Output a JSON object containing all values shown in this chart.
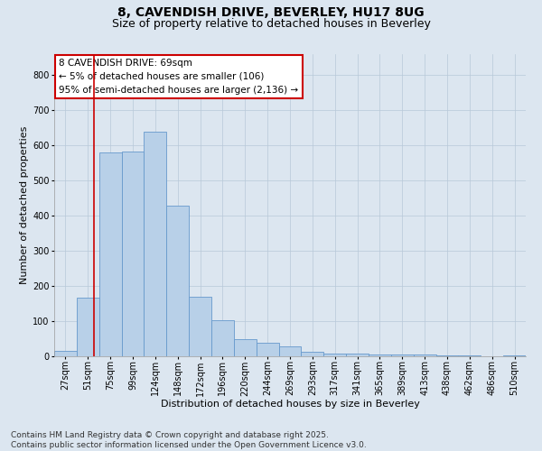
{
  "title_line1": "8, CAVENDISH DRIVE, BEVERLEY, HU17 8UG",
  "title_line2": "Size of property relative to detached houses in Beverley",
  "xlabel": "Distribution of detached houses by size in Beverley",
  "ylabel": "Number of detached properties",
  "footer_line1": "Contains HM Land Registry data © Crown copyright and database right 2025.",
  "footer_line2": "Contains public sector information licensed under the Open Government Licence v3.0.",
  "annotation_line1": "8 CAVENDISH DRIVE: 69sqm",
  "annotation_line2": "← 5% of detached houses are smaller (106)",
  "annotation_line3": "95% of semi-detached houses are larger (2,136) →",
  "bar_labels": [
    "27sqm",
    "51sqm",
    "75sqm",
    "99sqm",
    "124sqm",
    "148sqm",
    "172sqm",
    "196sqm",
    "220sqm",
    "244sqm",
    "269sqm",
    "293sqm",
    "317sqm",
    "341sqm",
    "365sqm",
    "389sqm",
    "413sqm",
    "438sqm",
    "462sqm",
    "486sqm",
    "510sqm"
  ],
  "bar_values": [
    15,
    168,
    580,
    582,
    638,
    430,
    170,
    103,
    50,
    38,
    28,
    12,
    8,
    8,
    4,
    4,
    5,
    2,
    2,
    1,
    3
  ],
  "bar_color": "#b8d0e8",
  "bar_edge_color": "#6699cc",
  "vline_color": "#cc0000",
  "vline_pos": 1.75,
  "ylim": [
    0,
    860
  ],
  "yticks": [
    0,
    100,
    200,
    300,
    400,
    500,
    600,
    700,
    800
  ],
  "background_color": "#dce6f0",
  "plot_bg_color": "#dce6f0",
  "annotation_box_color": "#ffffff",
  "annotation_box_edge": "#cc0000",
  "grid_color": "#b8c8d8",
  "title_fontsize": 10,
  "subtitle_fontsize": 9,
  "axis_label_fontsize": 8,
  "tick_fontsize": 7,
  "annotation_fontsize": 7.5,
  "footer_fontsize": 6.5
}
